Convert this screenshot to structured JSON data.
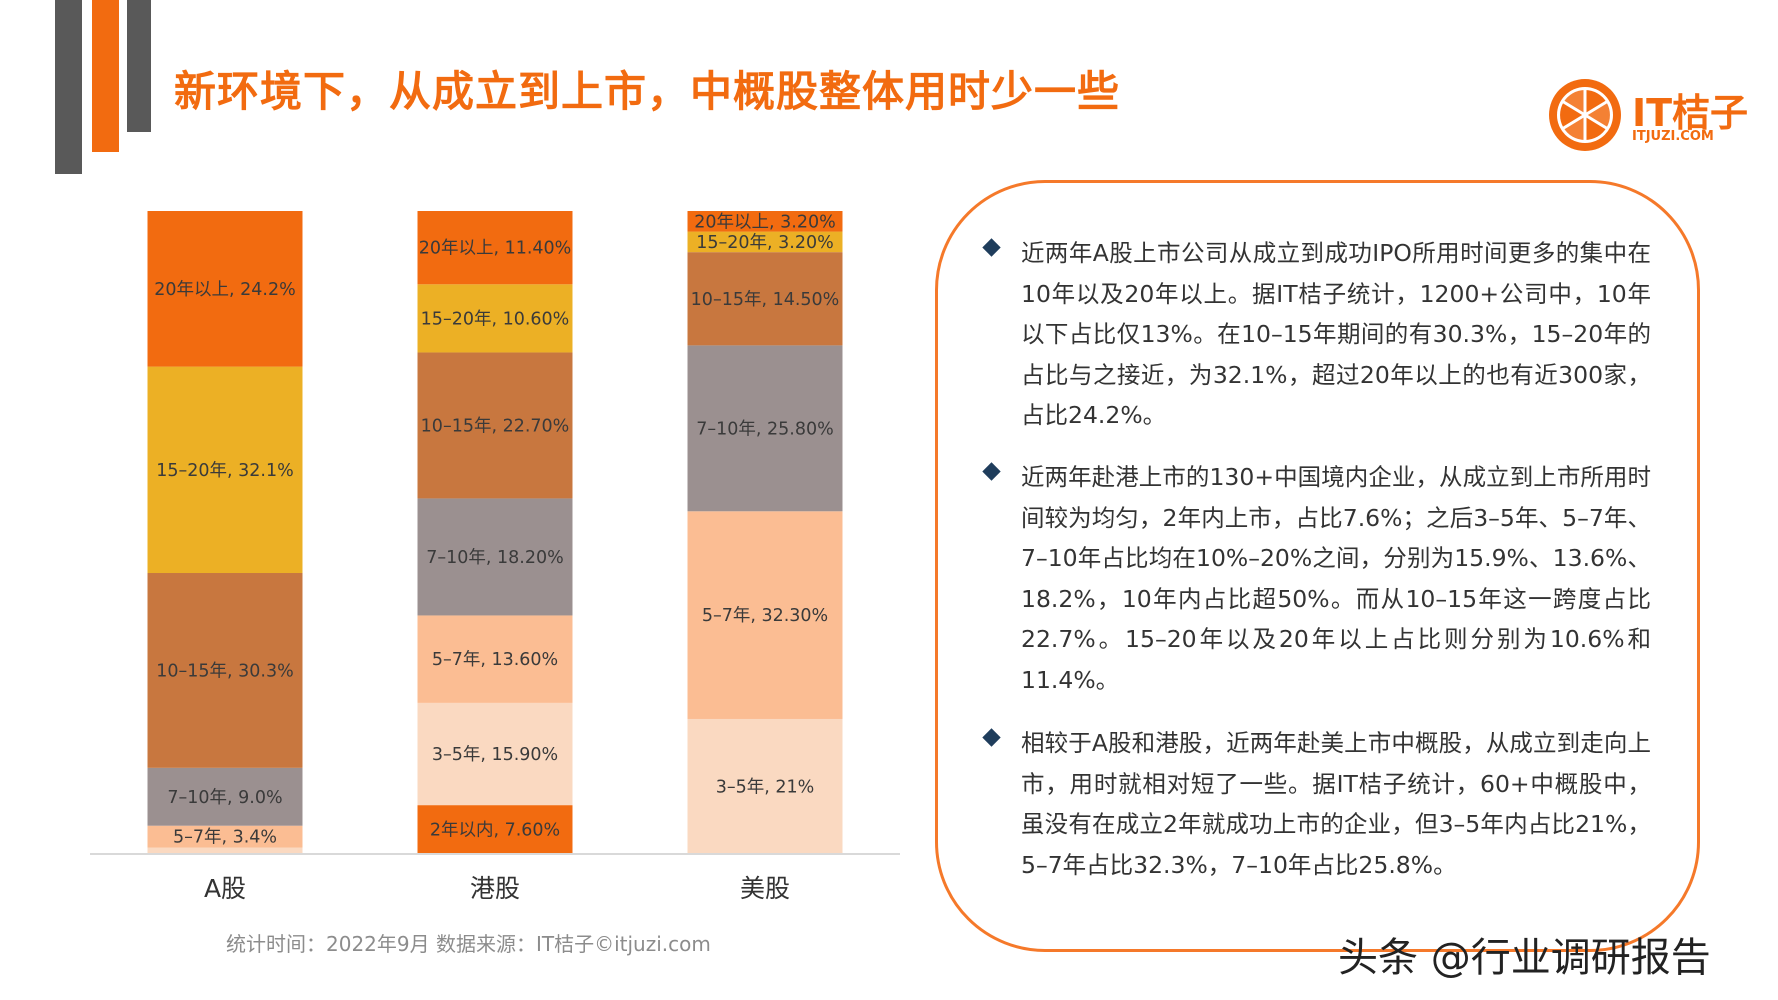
{
  "title": "新环境下，从成立到上市，中概股整体用时少一些",
  "logo": {
    "text": "IT桔子",
    "subtext": "ITJUZI.COM"
  },
  "colors": {
    "accent": "#f26b10",
    "bar_colors": [
      "#fad9c1",
      "#fbbd93",
      "#9b9090",
      "#c8773f",
      "#ecb025",
      "#f26b10"
    ]
  },
  "chart_data": {
    "type": "bar",
    "stacked": true,
    "categories": [
      "A股",
      "港股",
      "美股"
    ],
    "series": [
      {
        "name": "2年以内",
        "values": [
          0,
          7.6,
          0
        ],
        "color": "#f26b10",
        "labels": [
          "",
          "2年以内, 7.60%",
          ""
        ]
      },
      {
        "name": "3-5年",
        "values": [
          1,
          15.9,
          21
        ],
        "color": "#fad9c1",
        "labels": [
          "",
          "3–5年, 15.90%",
          "3–5年, 21%"
        ]
      },
      {
        "name": "5-7年",
        "values": [
          3.4,
          13.6,
          32.3
        ],
        "color": "#fbbd93",
        "labels": [
          "5–7年, 3.4%",
          "5–7年, 13.60%",
          "5–7年, 32.30%"
        ]
      },
      {
        "name": "7-10年",
        "values": [
          9.0,
          18.2,
          25.8
        ],
        "color": "#9b9090",
        "labels": [
          "7–10年, 9.0%",
          "7–10年, 18.20%",
          "7–10年, 25.80%"
        ]
      },
      {
        "name": "10-15年",
        "values": [
          30.3,
          22.7,
          14.5
        ],
        "color": "#c8773f",
        "labels": [
          "10–15年, 30.3%",
          "10–15年, 22.70%",
          "10–15年, 14.50%"
        ]
      },
      {
        "name": "15-20年",
        "values": [
          32.1,
          10.6,
          3.2
        ],
        "color": "#ecb025",
        "labels": [
          "15–20年, 32.1%",
          "15–20年, 10.60%",
          "15–20年, 3.20%"
        ]
      },
      {
        "name": "20年以上",
        "values": [
          24.2,
          11.4,
          3.2
        ],
        "color": "#f26b10",
        "labels": [
          "20年以上, 24.2%",
          "20年以上, 11.40%",
          "20年以上, 3.20%"
        ]
      }
    ],
    "ylim": [
      0,
      100
    ],
    "grid": false,
    "legend": "none"
  },
  "source_note": "统计时间：2022年9月   数据来源：IT桔子©itjuzi.com",
  "bullets": [
    "近两年A股上市公司从成立到成功IPO所用时间更多的集中在10年以及20年以上。据IT桔子统计，1200+公司中，10年以下占比仅13%。在10–15年期间的有30.3%，15–20年的占比与之接近，为32.1%，超过20年以上的也有近300家，占比24.2%。",
    "近两年赴港上市的130+中国境内企业，从成立到上市所用时间较为均匀，2年内上市，占比7.6%；之后3–5年、5–7年、7–10年占比均在10%–20%之间，分别为15.9%、13.6%、18.2%，10年内占比超50%。而从10–15年这一跨度占比22.7%。15–20年以及20年以上占比则分别为10.6%和11.4%。",
    "相较于A股和港股，近两年赴美上市中概股，从成立到走向上市，用时就相对短了一些。据IT桔子统计，60+中概股中，虽没有在成立2年就成功上市的企业，但3–5年内占比21%，5–7年占比32.3%，7–10年占比25.8%。"
  ],
  "watermark": "头条 @行业调研报告"
}
